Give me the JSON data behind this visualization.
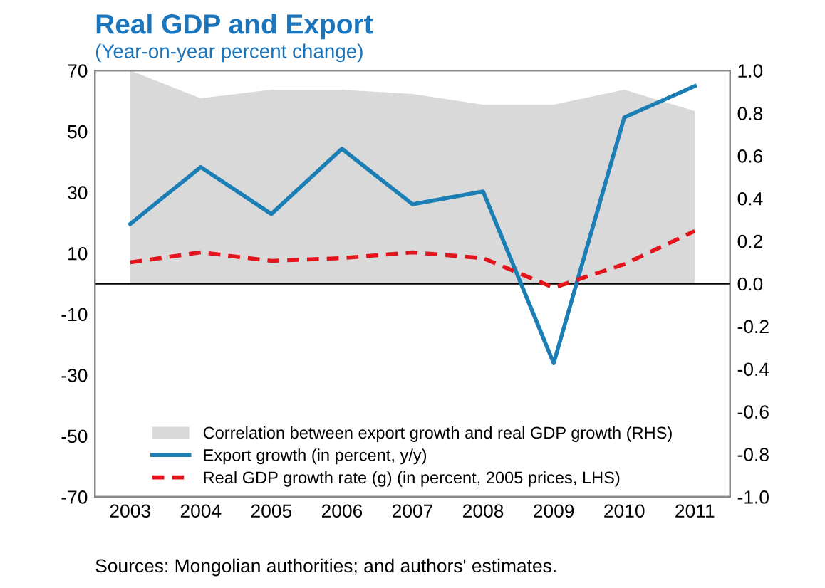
{
  "chart_data": {
    "type": "line",
    "title": "Real GDP and Export",
    "subtitle": "(Year-on-year percent change)",
    "categories": [
      "2003",
      "2004",
      "2005",
      "2006",
      "2007",
      "2008",
      "2009",
      "2010",
      "2011"
    ],
    "series": [
      {
        "name": "Correlation between export growth and real GDP growth (RHS)",
        "type": "area",
        "axis": "y2",
        "color": "#d9d9d9",
        "values": [
          1.0,
          0.87,
          0.91,
          0.91,
          0.89,
          0.84,
          0.84,
          0.91,
          0.81
        ]
      },
      {
        "name": "Export growth (in percent, y/y)",
        "color": "#1b7eb5",
        "line_style": "solid",
        "values": [
          19.6,
          38.3,
          22.9,
          44.3,
          26.1,
          30.3,
          -26.1,
          54.6,
          64.9
        ]
      },
      {
        "name": "Real GDP growth rate (g) (in percent, 2005 prices, LHS)",
        "color": "#e3141b",
        "line_style": "dashed",
        "values": [
          7.0,
          10.3,
          7.5,
          8.4,
          10.3,
          8.4,
          -1.3,
          6.4,
          17.3
        ]
      }
    ],
    "ylim": [
      -70,
      70
    ],
    "yticks": [
      -70,
      -50,
      -30,
      -10,
      10,
      30,
      50,
      70
    ],
    "y2lim": [
      -1,
      1
    ],
    "y2ticks": [
      {
        "value": -1,
        "label": "-1.0"
      },
      {
        "value": -0.8,
        "label": "-0.8"
      },
      {
        "value": -0.6,
        "label": "-0.6"
      },
      {
        "value": -0.4,
        "label": "-0.4"
      },
      {
        "value": -0.2,
        "label": "-0.2"
      },
      {
        "value": 0,
        "label": "0.0"
      },
      {
        "value": 0.2,
        "label": "0.2"
      },
      {
        "value": 0.4,
        "label": "0.4"
      },
      {
        "value": 0.6,
        "label": "0.6"
      },
      {
        "value": 0.8,
        "label": "0.8"
      },
      {
        "value": 1,
        "label": "1.0"
      }
    ],
    "ref_lines": [
      {
        "axis": "y",
        "value": 0,
        "color": "#000000"
      }
    ],
    "grid": false,
    "legend": "bottom",
    "annotations": [
      "Sources: Mongolian authorities; and authors' estimates."
    ]
  }
}
